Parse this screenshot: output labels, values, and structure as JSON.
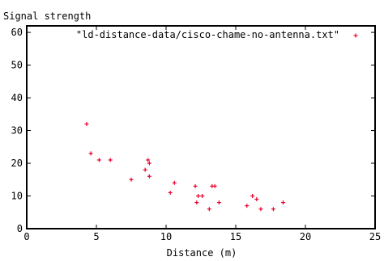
{
  "chart_data": {
    "type": "scatter",
    "title": "",
    "ylabel": "Signal strength",
    "xlabel": "Distance (m)",
    "xlim": [
      0,
      25
    ],
    "ylim": [
      0,
      62
    ],
    "x_ticks": [
      0,
      5,
      10,
      15,
      20,
      25
    ],
    "y_ticks": [
      0,
      10,
      20,
      30,
      40,
      50,
      60
    ],
    "grid": false,
    "legend_position": "top-right",
    "series": [
      {
        "name": "\"ld-distance-data/cisco-chame-no-antenna.txt\"",
        "color": "#e8002a",
        "marker": "plus",
        "points": [
          {
            "x": 4.3,
            "y": 32
          },
          {
            "x": 4.6,
            "y": 23
          },
          {
            "x": 5.2,
            "y": 21
          },
          {
            "x": 6.0,
            "y": 21
          },
          {
            "x": 7.5,
            "y": 15
          },
          {
            "x": 8.5,
            "y": 18
          },
          {
            "x": 8.7,
            "y": 21
          },
          {
            "x": 8.8,
            "y": 20
          },
          {
            "x": 8.8,
            "y": 16
          },
          {
            "x": 10.3,
            "y": 11
          },
          {
            "x": 10.6,
            "y": 14
          },
          {
            "x": 12.1,
            "y": 13
          },
          {
            "x": 12.2,
            "y": 8
          },
          {
            "x": 12.3,
            "y": 10
          },
          {
            "x": 12.6,
            "y": 10
          },
          {
            "x": 13.1,
            "y": 6
          },
          {
            "x": 13.3,
            "y": 13
          },
          {
            "x": 13.5,
            "y": 13
          },
          {
            "x": 13.8,
            "y": 8
          },
          {
            "x": 15.8,
            "y": 7
          },
          {
            "x": 16.2,
            "y": 10
          },
          {
            "x": 16.5,
            "y": 9
          },
          {
            "x": 16.8,
            "y": 6
          },
          {
            "x": 17.7,
            "y": 6
          },
          {
            "x": 18.4,
            "y": 8
          }
        ]
      }
    ]
  }
}
